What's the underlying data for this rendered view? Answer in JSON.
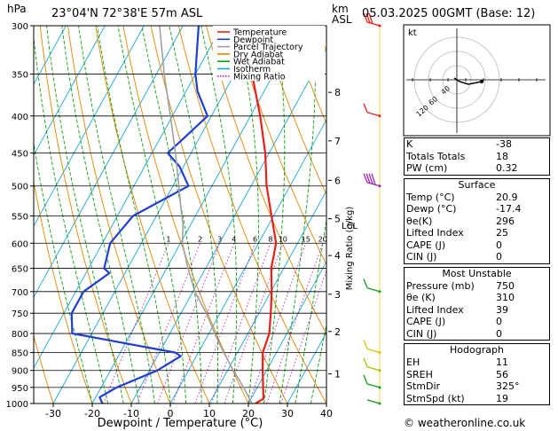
{
  "header": {
    "left_title": "23°04'N  72°38'E  57m  ASL",
    "hpa_label": "hPa",
    "km_label": "km",
    "asl_label": "ASL",
    "date_title": "05.03.2025  00GMT  (Base: 12)"
  },
  "legend": [
    {
      "label": "Temperature",
      "color": "#e8201c",
      "style": "solid"
    },
    {
      "label": "Dewpoint",
      "color": "#1f3fd4",
      "style": "solid"
    },
    {
      "label": "Parcel Trajectory",
      "color": "#a0a0a0",
      "style": "solid"
    },
    {
      "label": "Dry Adiabat",
      "color": "#e38400",
      "style": "solid"
    },
    {
      "label": "Wet Adiabat",
      "color": "#10a010",
      "style": "solid"
    },
    {
      "label": "Isotherm",
      "color": "#19a6d9",
      "style": "solid"
    },
    {
      "label": "Mixing Ratio",
      "color": "#c21fc2",
      "style": "dotted"
    }
  ],
  "chart_data": {
    "type": "line",
    "xlabel": "Dewpoint / Temperature (°C)",
    "ylabel": "hPa",
    "y2label": "Mixing Ratio (g/kg)",
    "pressure_levels": [
      300,
      350,
      400,
      450,
      500,
      550,
      600,
      650,
      700,
      750,
      800,
      850,
      900,
      950,
      1000
    ],
    "x_ticks": [
      -30,
      -20,
      -10,
      0,
      10,
      20,
      30,
      40
    ],
    "xlim": [
      -35,
      40
    ],
    "km_ticks": [
      {
        "km": "1",
        "p": 910
      },
      {
        "km": "2",
        "p": 795
      },
      {
        "km": "3",
        "p": 706
      },
      {
        "km": "4",
        "p": 624
      },
      {
        "km": "5",
        "p": 555
      },
      {
        "km": "6",
        "p": 491
      },
      {
        "km": "7",
        "p": 433
      },
      {
        "km": "8",
        "p": 371
      }
    ],
    "lcl_label": "LCL",
    "lcl_p": 565,
    "mixing_ratio_labels": [
      "1",
      "2",
      "3",
      "4",
      "6",
      "8",
      "10",
      "15",
      "20",
      "25"
    ],
    "mixing_ratio_values": [
      1,
      2,
      3,
      4,
      6,
      8,
      10,
      15,
      20,
      25
    ],
    "series": [
      {
        "name": "Temperature",
        "color": "#e8201c",
        "points": [
          [
            1000,
            21.8
          ],
          [
            985,
            23.2
          ],
          [
            950,
            21.5
          ],
          [
            900,
            19
          ],
          [
            850,
            16.5
          ],
          [
            800,
            15.5
          ],
          [
            750,
            13
          ],
          [
            700,
            10.2
          ],
          [
            650,
            6.8
          ],
          [
            600,
            4.5
          ],
          [
            550,
            -0.5
          ],
          [
            500,
            -6
          ],
          [
            450,
            -11
          ],
          [
            400,
            -17.5
          ],
          [
            350,
            -25.5
          ],
          [
            300,
            -33.5
          ]
        ]
      },
      {
        "name": "Dewpoint",
        "color": "#1f3fd4",
        "points": [
          [
            1000,
            -17.4
          ],
          [
            980,
            -19
          ],
          [
            950,
            -16
          ],
          [
            900,
            -8
          ],
          [
            860,
            -4
          ],
          [
            850,
            -6
          ],
          [
            800,
            -35
          ],
          [
            750,
            -38
          ],
          [
            700,
            -38
          ],
          [
            660,
            -34
          ],
          [
            650,
            -36
          ],
          [
            600,
            -38
          ],
          [
            550,
            -36
          ],
          [
            500,
            -26
          ],
          [
            470,
            -31
          ],
          [
            450,
            -36
          ],
          [
            430,
            -34
          ],
          [
            400,
            -31
          ],
          [
            370,
            -37
          ],
          [
            350,
            -40
          ],
          [
            300,
            -46
          ]
        ]
      },
      {
        "name": "Parcel Trajectory",
        "color": "#a0a0a0",
        "points": [
          [
            1000,
            20.9
          ],
          [
            950,
            16.5
          ],
          [
            900,
            11.5
          ],
          [
            850,
            6.5
          ],
          [
            800,
            1.5
          ],
          [
            750,
            -3.5
          ],
          [
            700,
            -9.5
          ],
          [
            650,
            -14.5
          ],
          [
            600,
            -19.5
          ],
          [
            565,
            -22
          ],
          [
            550,
            -23.5
          ],
          [
            500,
            -28.5
          ],
          [
            450,
            -34
          ],
          [
            400,
            -40.5
          ],
          [
            350,
            -48
          ],
          [
            300,
            -56
          ]
        ]
      }
    ],
    "wind_barbs": [
      {
        "p": 300,
        "color": "#e8201c",
        "flags": 3
      },
      {
        "p": 400,
        "color": "#e8201c",
        "flags": 1
      },
      {
        "p": 500,
        "color": "#9c27b0",
        "flags": 4
      },
      {
        "p": 700,
        "color": "#10a010",
        "flags": 1
      },
      {
        "p": 850,
        "color": "#e0c000",
        "flags": 1
      },
      {
        "p": 900,
        "color": "#a0c000",
        "flags": 1
      },
      {
        "p": 950,
        "color": "#10a010",
        "flags": 1
      },
      {
        "p": 1000,
        "color": "#10a010",
        "flags": 0
      }
    ]
  },
  "hodograph": {
    "unit_label": "kt",
    "ring_labels": [
      "40",
      "60",
      "120"
    ]
  },
  "indices": [
    {
      "label": "K",
      "value": "-38"
    },
    {
      "label": "Totals Totals",
      "value": "18"
    },
    {
      "label": "PW (cm)",
      "value": "0.32"
    }
  ],
  "surface": {
    "title": "Surface",
    "rows": [
      {
        "label": "Temp (°C)",
        "value": "20.9"
      },
      {
        "label": "Dewp (°C)",
        "value": "-17.4"
      },
      {
        "label": "θe(K)",
        "value": "296"
      },
      {
        "label": "Lifted Index",
        "value": "25"
      },
      {
        "label": "CAPE (J)",
        "value": "0"
      },
      {
        "label": "CIN (J)",
        "value": "0"
      }
    ]
  },
  "most_unstable": {
    "title": "Most Unstable",
    "rows": [
      {
        "label": "Pressure (mb)",
        "value": "750"
      },
      {
        "label": "θe (K)",
        "value": "310"
      },
      {
        "label": "Lifted Index",
        "value": "39"
      },
      {
        "label": "CAPE (J)",
        "value": "0"
      },
      {
        "label": "CIN (J)",
        "value": "0"
      }
    ]
  },
  "hodograph_table": {
    "title": "Hodograph",
    "rows": [
      {
        "label": "EH",
        "value": "11"
      },
      {
        "label": "SREH",
        "value": "56"
      },
      {
        "label": "StmDir",
        "value": "325°"
      },
      {
        "label": "StmSpd (kt)",
        "value": "19"
      }
    ]
  },
  "footer": "© weatheronline.co.uk"
}
